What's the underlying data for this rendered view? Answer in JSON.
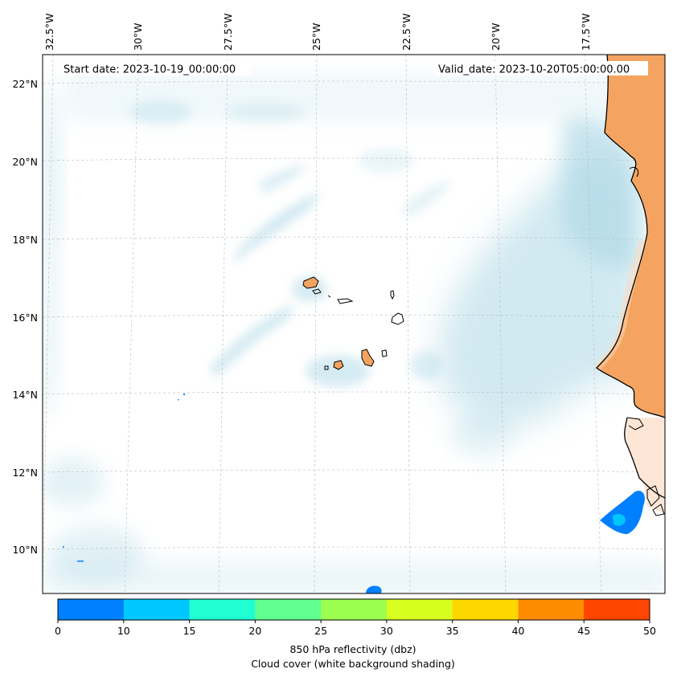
{
  "map": {
    "start_date": "Start date: 2023-10-19_00:00:00",
    "valid_date": "Valid_date: 2023-10-20T05:00:00.00",
    "lon_labels": [
      "32.5°W",
      "30°W",
      "27.5°W",
      "25°W",
      "22.5°W",
      "20°W",
      "17.5°W"
    ],
    "lat_labels": [
      "22°N",
      "20°N",
      "18°N",
      "16°N",
      "14°N",
      "12°N",
      "10°N"
    ],
    "colors": {
      "land": "#f4a460",
      "cloud": "#add8e6",
      "coastline": "#000000"
    }
  },
  "colorbar": {
    "ticks": [
      "0",
      "10",
      "15",
      "20",
      "25",
      "30",
      "35",
      "40",
      "45",
      "50"
    ],
    "colors": [
      "#0080ff",
      "#00c8ff",
      "#20ffd2",
      "#60ff90",
      "#9cff50",
      "#d8ff20",
      "#ffd700",
      "#ff8c00",
      "#ff4500"
    ],
    "label_line1": "850 hPa reflectivity (dbz)",
    "label_line2": "Cloud cover (white background shading)"
  }
}
